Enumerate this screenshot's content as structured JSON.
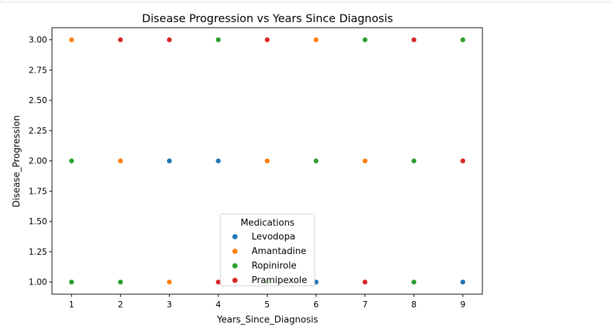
{
  "chart_data": {
    "type": "scatter",
    "title": "Disease Progression vs Years Since Diagnosis",
    "xlabel": "Years_Since_Diagnosis",
    "ylabel": "Disease_Progression",
    "xlim": [
      0.6,
      9.4
    ],
    "ylim": [
      0.9,
      3.1
    ],
    "xticks": [
      1,
      2,
      3,
      4,
      5,
      6,
      7,
      8,
      9
    ],
    "yticks": [
      1.0,
      1.25,
      1.5,
      1.75,
      2.0,
      2.25,
      2.5,
      2.75,
      3.0
    ],
    "ytick_labels": [
      "1.00",
      "1.25",
      "1.50",
      "1.75",
      "2.00",
      "2.25",
      "2.50",
      "2.75",
      "3.00"
    ],
    "grid": false,
    "legend": {
      "title": "Medications",
      "placement": "lower center"
    },
    "series": [
      {
        "name": "Levodopa",
        "color": "#1f77b4",
        "points": [
          [
            3,
            2
          ],
          [
            4,
            2
          ],
          [
            6,
            1
          ],
          [
            9,
            1
          ]
        ]
      },
      {
        "name": "Amantadine",
        "color": "#ff7f0e",
        "points": [
          [
            1,
            3
          ],
          [
            2,
            2
          ],
          [
            3,
            1
          ],
          [
            5,
            2
          ],
          [
            6,
            3
          ],
          [
            7,
            2
          ]
        ]
      },
      {
        "name": "Ropinirole",
        "color": "#2ca02c",
        "points": [
          [
            1,
            2
          ],
          [
            1,
            1
          ],
          [
            2,
            1
          ],
          [
            4,
            3
          ],
          [
            5,
            1
          ],
          [
            6,
            2
          ],
          [
            7,
            3
          ],
          [
            8,
            2
          ],
          [
            8,
            1
          ],
          [
            9,
            3
          ]
        ]
      },
      {
        "name": "Pramipexole",
        "color": "#d62728",
        "points": [
          [
            2,
            3
          ],
          [
            3,
            3
          ],
          [
            4,
            1
          ],
          [
            5,
            3
          ],
          [
            7,
            1
          ],
          [
            8,
            3
          ],
          [
            9,
            2
          ]
        ]
      }
    ]
  }
}
